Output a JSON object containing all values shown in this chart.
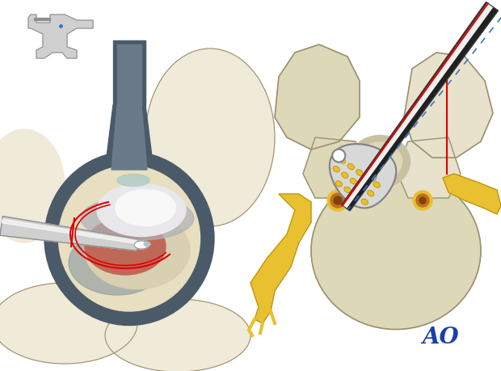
{
  "bg_color": "#ffffff",
  "ao_text": "AO",
  "ao_color": "#1a3faa",
  "ao_fontsize": 20,
  "bone_color": "#ddd8b8",
  "bone_color2": "#e8e2cc",
  "bone_outline": "#9a9070",
  "scope_gray": "#4a5a68",
  "scope_inner": "#6a7a88",
  "red_line": "#dd0000",
  "yellow": "#e8c030",
  "yellow_dark": "#b89010",
  "silver": "#c0c0c0",
  "silver_dark": "#808080",
  "silver_mid": "#d8d8d8",
  "black": "#111111",
  "blue_dashed": "#3377cc",
  "skin_light": "#f0ead8",
  "skin_mid": "#e8dfc0",
  "tissue_red": "#c06858",
  "tissue_gray": "#a0a8a0",
  "tissue_bone": "#d8d0b0",
  "tool_white": "#f0f0f0",
  "tool_black": "#202020",
  "instr_gray": "#d0d0d0",
  "instr_outline": "#909090",
  "teal_gray": "#8898a0"
}
